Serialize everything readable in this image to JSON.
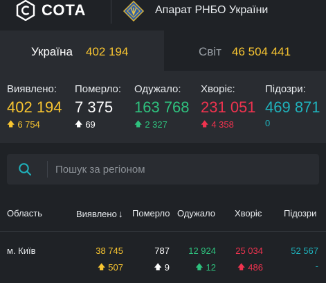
{
  "header": {
    "logo_text": "СОТА",
    "org_title": "Апарат РНБО України"
  },
  "tabs": [
    {
      "label": "Україна",
      "value": "402 194",
      "active": true
    },
    {
      "label": "Світ",
      "value": "46 504 441",
      "active": false
    }
  ],
  "stats": [
    {
      "label": "Виявлено:",
      "value": "402 194",
      "delta": "6 754",
      "arrow": "up",
      "color": "#f8c531",
      "delta_color": "#f8c531"
    },
    {
      "label": "Померло:",
      "value": "7 375",
      "delta": "69",
      "arrow": "up",
      "color": "#ffffff",
      "delta_color": "#ffffff"
    },
    {
      "label": "Одужало:",
      "value": "163 768",
      "delta": "2 327",
      "arrow": "up",
      "color": "#2ec27e",
      "delta_color": "#2ec27e"
    },
    {
      "label": "Хворіє:",
      "value": "231 051",
      "delta": "4 358",
      "arrow": "up",
      "color": "#f0334f",
      "delta_color": "#f0334f"
    },
    {
      "label": "Підозри:",
      "value": "469 871",
      "delta": "0",
      "arrow": "none",
      "color": "#1fb3bd",
      "delta_color": "#1fb3bd"
    }
  ],
  "search": {
    "placeholder": "Пошук за регіоном",
    "value": ""
  },
  "table": {
    "headers": [
      "Область",
      "Виявлено",
      "Померло",
      "Одужало",
      "Хворіє",
      "Підозри"
    ],
    "sort_indicator": "↓",
    "rows": [
      {
        "region": "м. Київ",
        "confirmed": "38 745",
        "confirmed_delta": "507",
        "deaths": "787",
        "deaths_delta": "9",
        "recovered": "12 924",
        "recovered_delta": "12",
        "active": "25 034",
        "active_delta": "486",
        "suspected": "52 567",
        "suspected_delta": "-"
      }
    ]
  },
  "colors": {
    "background": "#1f2226",
    "panel": "#292c31",
    "yellow": "#f8c531",
    "green": "#2ec27e",
    "red": "#f0334f",
    "teal": "#1fb3bd"
  },
  "icons": {
    "logo": "sota-hex-logo-icon",
    "emblem": "rnbo-emblem-icon",
    "search": "search-icon",
    "arrow_up": "arrow-up-icon"
  }
}
